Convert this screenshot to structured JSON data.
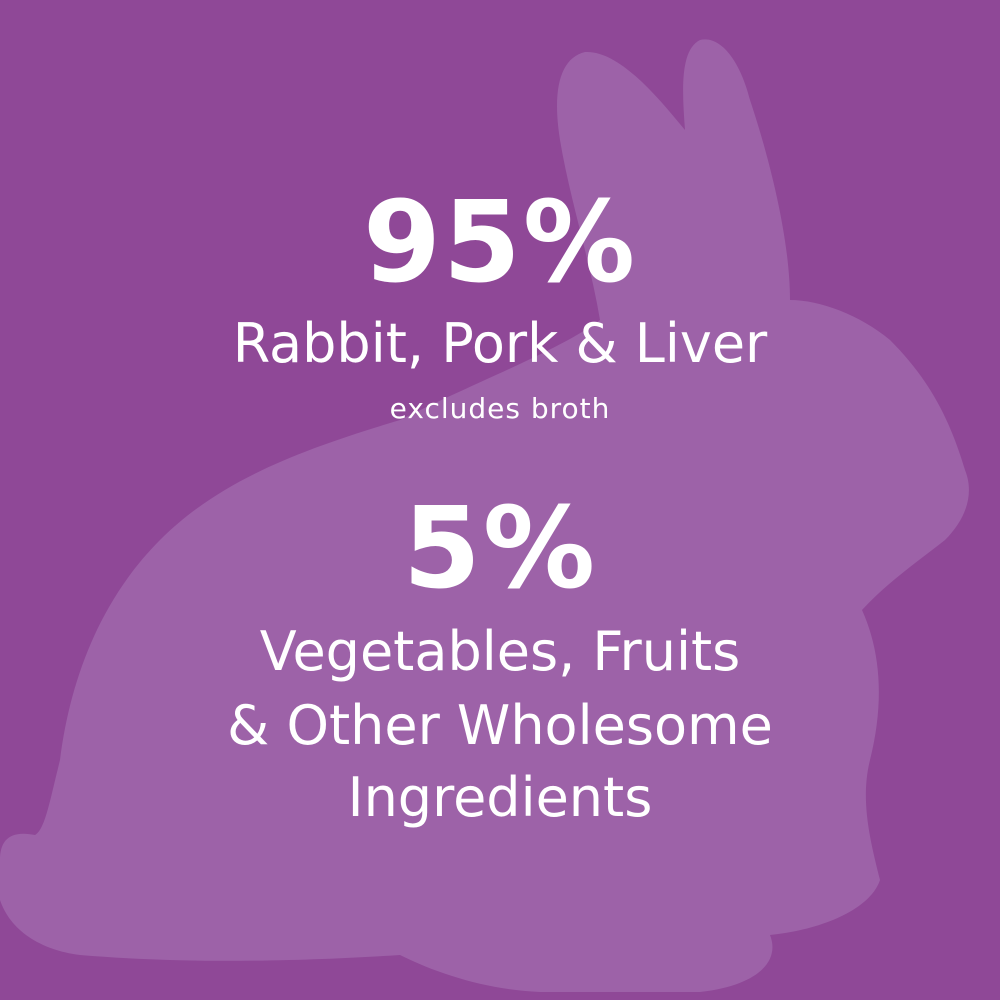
{
  "colors": {
    "background": "#8f4897",
    "silhouette": "#9d62a8",
    "text": "#ffffff"
  },
  "silhouette_icon": "rabbit-silhouette",
  "stat1": {
    "value": "95%",
    "label": "Rabbit, Pork & Liver",
    "note": "excludes broth"
  },
  "stat2": {
    "value": "5%",
    "label_lines": [
      "Vegetables, Fruits",
      "& Other Wholesome",
      "Ingredients"
    ]
  }
}
